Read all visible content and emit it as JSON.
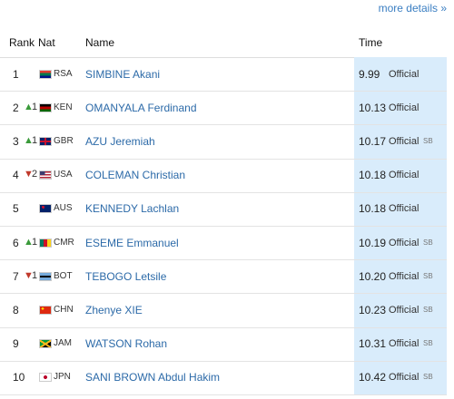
{
  "header": {
    "link": "more details »"
  },
  "table": {
    "columns": [
      "Rank",
      "Nat",
      "Name",
      "Time"
    ],
    "rows": [
      {
        "rank": "1",
        "nat": "RSA",
        "name": "SIMBINE Akani",
        "time": "9.99",
        "status": "Official"
      },
      {
        "rank": "2",
        "change": {
          "arrow": "▲",
          "value": "1"
        },
        "nat": "KEN",
        "name": "OMANYALA Ferdinand",
        "time": "10.13",
        "status": "Official"
      },
      {
        "rank": "3",
        "change": {
          "arrow": "▲",
          "value": "1"
        },
        "nat": "GBR",
        "name": "AZU Jeremiah",
        "time": "10.17",
        "status": "Official",
        "note": "SB"
      },
      {
        "rank": "4",
        "change": {
          "arrow": "▼",
          "value": "2"
        },
        "nat": "USA",
        "name": "COLEMAN Christian",
        "time": "10.18",
        "status": "Official"
      },
      {
        "rank": "5",
        "nat": "AUS",
        "name": "KENNEDY Lachlan",
        "time": "10.18",
        "status": "Official"
      },
      {
        "rank": "6",
        "change": {
          "arrow": "▲",
          "value": "1"
        },
        "nat": "CMR",
        "name": "ESEME Emmanuel",
        "time": "10.19",
        "status": "Official",
        "note": "SB"
      },
      {
        "rank": "7",
        "change": {
          "arrow": "▼",
          "value": "1"
        },
        "nat": "BOT",
        "name": "TEBOGO Letsile",
        "time": "10.20",
        "status": "Official",
        "note": "SB"
      },
      {
        "rank": "8",
        "nat": "CHN",
        "name": "Zhenye XIE",
        "time": "10.23",
        "status": "Official",
        "note": "SB"
      },
      {
        "rank": "9",
        "nat": "JAM",
        "name": "WATSON Rohan",
        "time": "10.31",
        "status": "Official",
        "note": "SB"
      },
      {
        "rank": "10",
        "nat": "JPN",
        "name": "SANI BROWN Abdul Hakim",
        "time": "10.42",
        "status": "Official",
        "note": "SB"
      }
    ]
  }
}
